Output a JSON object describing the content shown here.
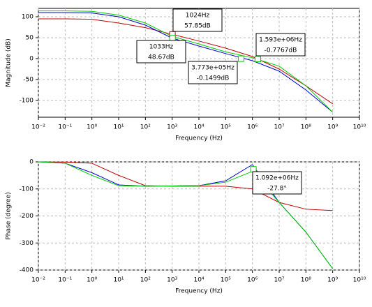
{
  "chart_data": [
    {
      "type": "line",
      "ylabel": "Magnitude (dB)",
      "xlabel": "Frequency (Hz)",
      "xscale": "log",
      "grid": true,
      "x": [
        0.01,
        0.1,
        1,
        10,
        100,
        1000,
        10000,
        100000,
        1000000,
        10000000,
        100000000,
        1000000000
      ],
      "xlim": [
        0.01,
        10000000000
      ],
      "xticks": [
        {
          "value": 0.01,
          "label": "10⁻²"
        },
        {
          "value": 0.1,
          "label": "10⁻¹"
        },
        {
          "value": 1,
          "label": "10⁰"
        },
        {
          "value": 10,
          "label": "10¹"
        },
        {
          "value": 100,
          "label": "10²"
        },
        {
          "value": 1000,
          "label": "10³"
        },
        {
          "value": 10000,
          "label": "10⁴"
        },
        {
          "value": 100000,
          "label": "10⁵"
        },
        {
          "value": 1000000,
          "label": "10⁶"
        },
        {
          "value": 10000000,
          "label": "10⁷"
        },
        {
          "value": 100000000,
          "label": "10⁸"
        },
        {
          "value": 1000000000,
          "label": "10⁹"
        },
        {
          "value": 10000000000,
          "label": "10¹⁰"
        }
      ],
      "ylim": [
        -140,
        120
      ],
      "yticks": [
        -100,
        -50,
        0,
        50,
        100
      ],
      "series": [
        {
          "name": "red",
          "color": "#c00000",
          "values": [
            95,
            95,
            94,
            85,
            74,
            58,
            42,
            25,
            5,
            -25,
            -65,
            -108
          ]
        },
        {
          "name": "blue",
          "color": "#0000cc",
          "values": [
            110,
            110,
            109,
            100,
            80,
            49,
            30,
            12,
            -5,
            -30,
            -75,
            -128
          ]
        },
        {
          "name": "green",
          "color": "#00cc00",
          "values": [
            114,
            114,
            113,
            104,
            85,
            53,
            35,
            16,
            2,
            -18,
            -65,
            -128
          ]
        }
      ],
      "annotations": [
        {
          "x": 1024,
          "y": 57.85,
          "color": "#c00000",
          "lines": [
            "1024Hz",
            "57.85dB"
          ]
        },
        {
          "x": 1033,
          "y": 48.67,
          "color": "#00cc00",
          "lines": [
            "1033Hz",
            "48.67dB"
          ]
        },
        {
          "x": 377300,
          "y": -0.1499,
          "color": "#00cc00",
          "lines": [
            "3.773e+05Hz",
            "-0.1499dB"
          ]
        },
        {
          "x": 1593000,
          "y": -0.7767,
          "color": "#00cc00",
          "lines": [
            "1.593e+06Hz",
            "-0.7767dB"
          ]
        }
      ]
    },
    {
      "type": "line",
      "ylabel": "Phase (degree)",
      "xlabel": "Frequency (Hz)",
      "xscale": "log",
      "grid": true,
      "x": [
        0.01,
        0.1,
        1,
        10,
        100,
        1000,
        10000,
        100000,
        1000000,
        10000000,
        100000000,
        1000000000
      ],
      "xlim": [
        0.01,
        10000000000
      ],
      "xticks": [
        {
          "value": 0.01,
          "label": "10⁻²"
        },
        {
          "value": 0.1,
          "label": "10⁻¹"
        },
        {
          "value": 1,
          "label": "10⁰"
        },
        {
          "value": 10,
          "label": "10¹"
        },
        {
          "value": 100,
          "label": "10²"
        },
        {
          "value": 1000,
          "label": "10³"
        },
        {
          "value": 10000,
          "label": "10⁴"
        },
        {
          "value": 100000,
          "label": "10⁵"
        },
        {
          "value": 1000000,
          "label": "10⁶"
        },
        {
          "value": 10000000,
          "label": "10⁷"
        },
        {
          "value": 100000000,
          "label": "10⁸"
        },
        {
          "value": 1000000000,
          "label": "10⁹"
        },
        {
          "value": 10000000000,
          "label": "10¹⁰"
        }
      ],
      "ylim": [
        -400,
        0
      ],
      "yticks": [
        -400,
        -300,
        -200,
        -100,
        0
      ],
      "series": [
        {
          "name": "red",
          "color": "#c00000",
          "values": [
            0,
            -1,
            -5,
            -50,
            -88,
            -90,
            -90,
            -90,
            -100,
            -150,
            -175,
            -180
          ]
        },
        {
          "name": "blue",
          "color": "#0000cc",
          "values": [
            0,
            -5,
            -40,
            -85,
            -90,
            -89,
            -88,
            -70,
            -10,
            -150,
            -260,
            -395
          ]
        },
        {
          "name": "green",
          "color": "#00cc00",
          "values": [
            0,
            -5,
            -50,
            -88,
            -90,
            -89,
            -88,
            -75,
            -35,
            -150,
            -260,
            -395
          ]
        }
      ],
      "annotations": [
        {
          "x": 1092000,
          "y": -27.8,
          "color": "#00cc00",
          "lines": [
            "1.092e+06Hz",
            "-27.8°"
          ]
        }
      ]
    }
  ]
}
